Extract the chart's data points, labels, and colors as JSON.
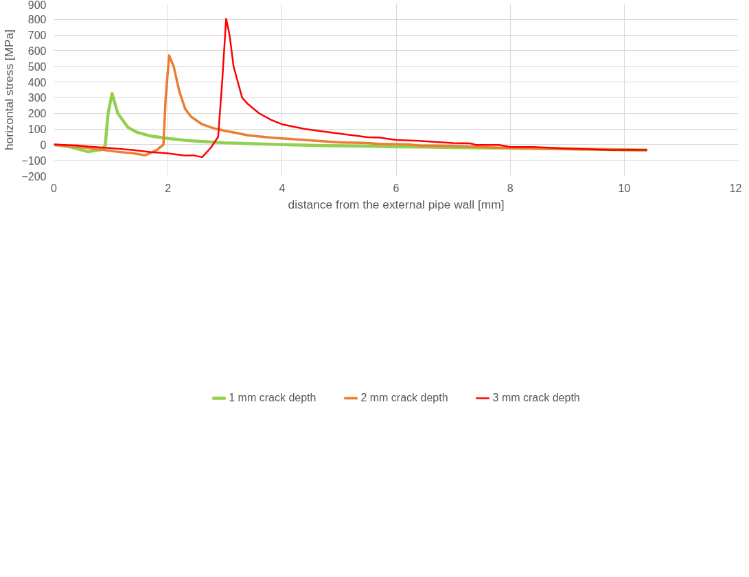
{
  "chart_data": {
    "type": "line",
    "xlabel": "distance from the external pipe wall [mm]",
    "ylabel": "horizontal stress [MPa]",
    "xlim": [
      0,
      12
    ],
    "xticks": [
      0,
      2,
      4,
      6,
      8,
      10,
      12
    ],
    "ylim": [
      -200,
      900
    ],
    "yticks": [
      -200,
      -100,
      0,
      100,
      200,
      300,
      400,
      500,
      600,
      700,
      800,
      900
    ],
    "grid": true,
    "legend": "bottom",
    "marker": "none",
    "line_style": "solid",
    "series": [
      {
        "name": "1 mm crack depth",
        "color": "#92d050",
        "x": [
          0,
          0.3,
          0.6,
          0.85,
          0.9,
          0.95,
          1.02,
          1.12,
          1.3,
          1.45,
          1.7,
          2.0,
          2.3,
          2.6,
          3.0,
          3.6,
          4.0,
          4.6,
          5.2,
          5.6,
          6.0,
          6.4,
          7.0,
          7.5,
          8.0,
          8.6,
          9.2,
          9.6,
          10.0,
          10.4
        ],
        "values": [
          0,
          -15,
          -45,
          -30,
          -5,
          200,
          327,
          200,
          110,
          80,
          55,
          40,
          28,
          20,
          12,
          5,
          0,
          -5,
          -8,
          -10,
          -14,
          -15,
          -18,
          -20,
          -22,
          -25,
          -28,
          -30,
          -32,
          -35
        ]
      },
      {
        "name": "2 mm crack depth",
        "color": "#ed7d31",
        "x": [
          0,
          0.3,
          0.6,
          0.9,
          1.1,
          1.4,
          1.6,
          1.8,
          1.92,
          1.96,
          2.02,
          2.1,
          2.2,
          2.3,
          2.4,
          2.6,
          2.8,
          3.0,
          3.2,
          3.4,
          3.8,
          4.0,
          4.4,
          5.0,
          5.5,
          5.7,
          6.2,
          6.4,
          7.0,
          7.3,
          7.5,
          7.8,
          8.0,
          8.5,
          9.0,
          9.6,
          10.0,
          10.4
        ],
        "values": [
          0,
          -10,
          -20,
          -35,
          -45,
          -55,
          -68,
          -35,
          0,
          300,
          570,
          500,
          340,
          230,
          180,
          130,
          105,
          88,
          75,
          60,
          45,
          40,
          30,
          15,
          10,
          5,
          2,
          -5,
          -8,
          -12,
          -15,
          -20,
          -20,
          -25,
          -28,
          -30,
          -33,
          -35
        ]
      },
      {
        "name": "3 mm crack depth",
        "color": "#ff0000",
        "x": [
          0,
          0.4,
          0.6,
          1.0,
          1.4,
          1.7,
          2.0,
          2.3,
          2.45,
          2.6,
          2.75,
          2.88,
          2.95,
          3.02,
          3.08,
          3.15,
          3.3,
          3.4,
          3.6,
          3.8,
          4.0,
          4.4,
          4.8,
          5.2,
          5.5,
          5.7,
          6.0,
          6.4,
          6.8,
          7.0,
          7.3,
          7.4,
          7.8,
          8.0,
          8.4,
          9.0,
          9.3,
          9.8,
          10.0,
          10.4
        ],
        "values": [
          0,
          -5,
          -12,
          -22,
          -35,
          -48,
          -55,
          -70,
          -68,
          -80,
          -20,
          50,
          400,
          805,
          700,
          500,
          300,
          260,
          200,
          160,
          130,
          100,
          80,
          62,
          48,
          45,
          30,
          25,
          15,
          10,
          8,
          -2,
          -2,
          -15,
          -15,
          -25,
          -28,
          -35,
          -32,
          -33
        ]
      }
    ]
  }
}
